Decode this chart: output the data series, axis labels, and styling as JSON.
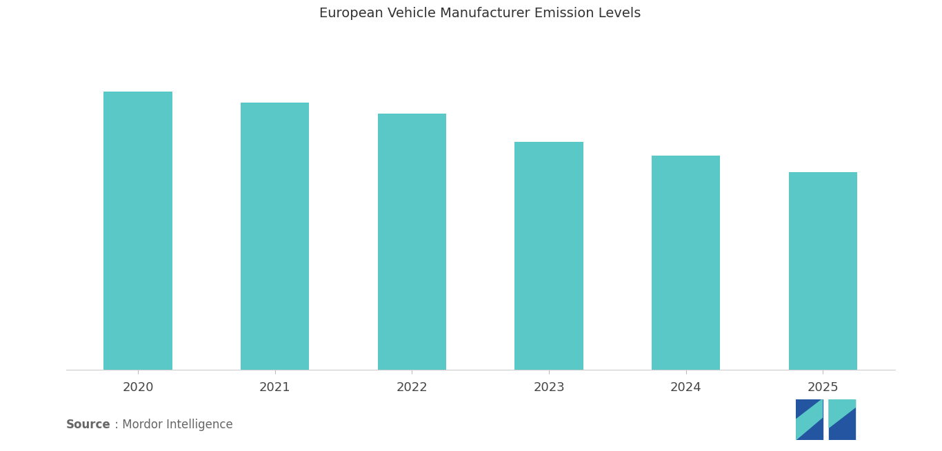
{
  "title": "European Vehicle Manufacturer Emission Levels",
  "categories": [
    "2020",
    "2021",
    "2022",
    "2023",
    "2024",
    "2025"
  ],
  "values": [
    100,
    96,
    92,
    82,
    77,
    71
  ],
  "bar_color": "#5BC8C8",
  "background_color": "#FFFFFF",
  "source_label_bold": "Source",
  "source_text_rest": " : Mordor Intelligence",
  "title_fontsize": 14,
  "tick_fontsize": 13,
  "source_fontsize": 12,
  "ylim": [
    0,
    120
  ],
  "bar_width": 0.5
}
